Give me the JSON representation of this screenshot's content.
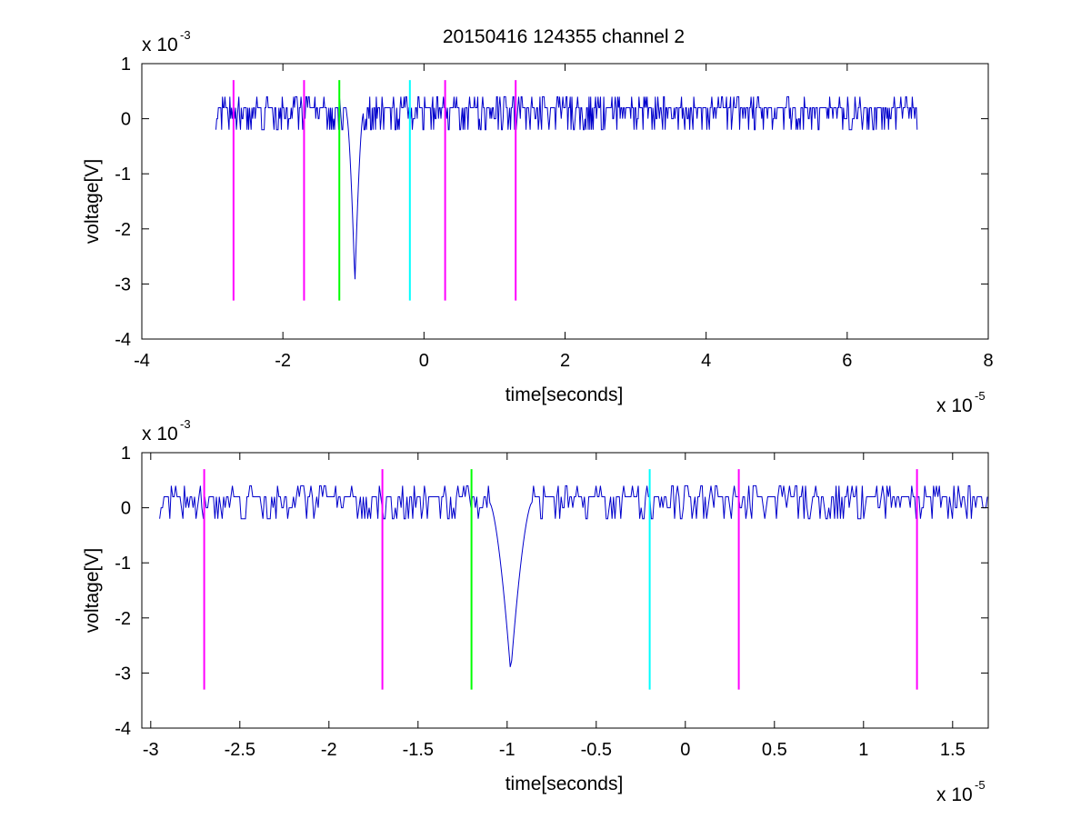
{
  "figure": {
    "title": "20150416 124355 channel 2"
  },
  "chart_data": [
    {
      "type": "line",
      "name": "full-view",
      "title": "20150416 124355 channel 2",
      "xlabel": "time[seconds]",
      "ylabel": "voltage[V]",
      "x_exponent_label": "x 10",
      "x_exponent": "-5",
      "y_exponent_label": "x 10",
      "y_exponent": "-3",
      "xlim": [
        -4,
        8
      ],
      "ylim": [
        -4,
        1
      ],
      "x_ticks": [
        -4,
        -2,
        0,
        2,
        4,
        6,
        8
      ],
      "x_tick_labels": [
        "-4",
        "-2",
        "0",
        "2",
        "4",
        "6",
        "8"
      ],
      "y_ticks": [
        -4,
        -3,
        -2,
        -1,
        0,
        1
      ],
      "y_tick_labels": [
        "-4",
        "-3",
        "-2",
        "-1",
        "0",
        "1"
      ],
      "grid": false,
      "signal": {
        "color": "#0000cc",
        "x_range": [
          -2.95,
          7.0
        ],
        "baseline": 0.1,
        "noise_levels": [
          -0.2,
          0.0,
          0.2,
          0.4
        ],
        "spike": {
          "x": -0.98,
          "min": -3.0
        }
      },
      "markers": [
        {
          "x": -2.7,
          "color": "#ff00ff",
          "top": 0.7,
          "bottom": -3.3
        },
        {
          "x": -1.7,
          "color": "#ff00ff",
          "top": 0.7,
          "bottom": -3.3
        },
        {
          "x": -1.2,
          "color": "#00ff00",
          "top": 0.7,
          "bottom": -3.3
        },
        {
          "x": -0.2,
          "color": "#00ffff",
          "top": 0.7,
          "bottom": -3.3
        },
        {
          "x": 0.3,
          "color": "#ff00ff",
          "top": 0.7,
          "bottom": -3.3
        },
        {
          "x": 1.3,
          "color": "#ff00ff",
          "top": 0.7,
          "bottom": -3.3
        }
      ]
    },
    {
      "type": "line",
      "name": "zoomed-view",
      "xlabel": "time[seconds]",
      "ylabel": "voltage[V]",
      "x_exponent_label": "x 10",
      "x_exponent": "-5",
      "y_exponent_label": "x 10",
      "y_exponent": "-3",
      "xlim": [
        -3.05,
        1.7
      ],
      "ylim": [
        -4,
        1
      ],
      "x_ticks": [
        -3,
        -2.5,
        -2,
        -1.5,
        -1,
        -0.5,
        0,
        0.5,
        1,
        1.5
      ],
      "x_tick_labels": [
        "-3",
        "-2.5",
        "-2",
        "-1.5",
        "-1",
        "-0.5",
        "0",
        "0.5",
        "1",
        "1.5"
      ],
      "y_ticks": [
        -4,
        -3,
        -2,
        -1,
        0,
        1
      ],
      "y_tick_labels": [
        "-4",
        "-3",
        "-2",
        "-1",
        "0",
        "1"
      ],
      "grid": false,
      "signal": {
        "color": "#0000cc",
        "x_range": [
          -2.95,
          1.7
        ],
        "baseline": 0.1,
        "noise_levels": [
          -0.2,
          0.0,
          0.2,
          0.4
        ],
        "spike": {
          "x": -0.98,
          "min": -3.0
        }
      },
      "markers": [
        {
          "x": -2.7,
          "color": "#ff00ff",
          "top": 0.7,
          "bottom": -3.3
        },
        {
          "x": -1.7,
          "color": "#ff00ff",
          "top": 0.7,
          "bottom": -3.3
        },
        {
          "x": -1.2,
          "color": "#00ff00",
          "top": 0.7,
          "bottom": -3.3
        },
        {
          "x": -0.2,
          "color": "#00ffff",
          "top": 0.7,
          "bottom": -3.3
        },
        {
          "x": 0.3,
          "color": "#ff00ff",
          "top": 0.7,
          "bottom": -3.3
        },
        {
          "x": 1.3,
          "color": "#ff00ff",
          "top": 0.7,
          "bottom": -3.3
        }
      ]
    }
  ]
}
